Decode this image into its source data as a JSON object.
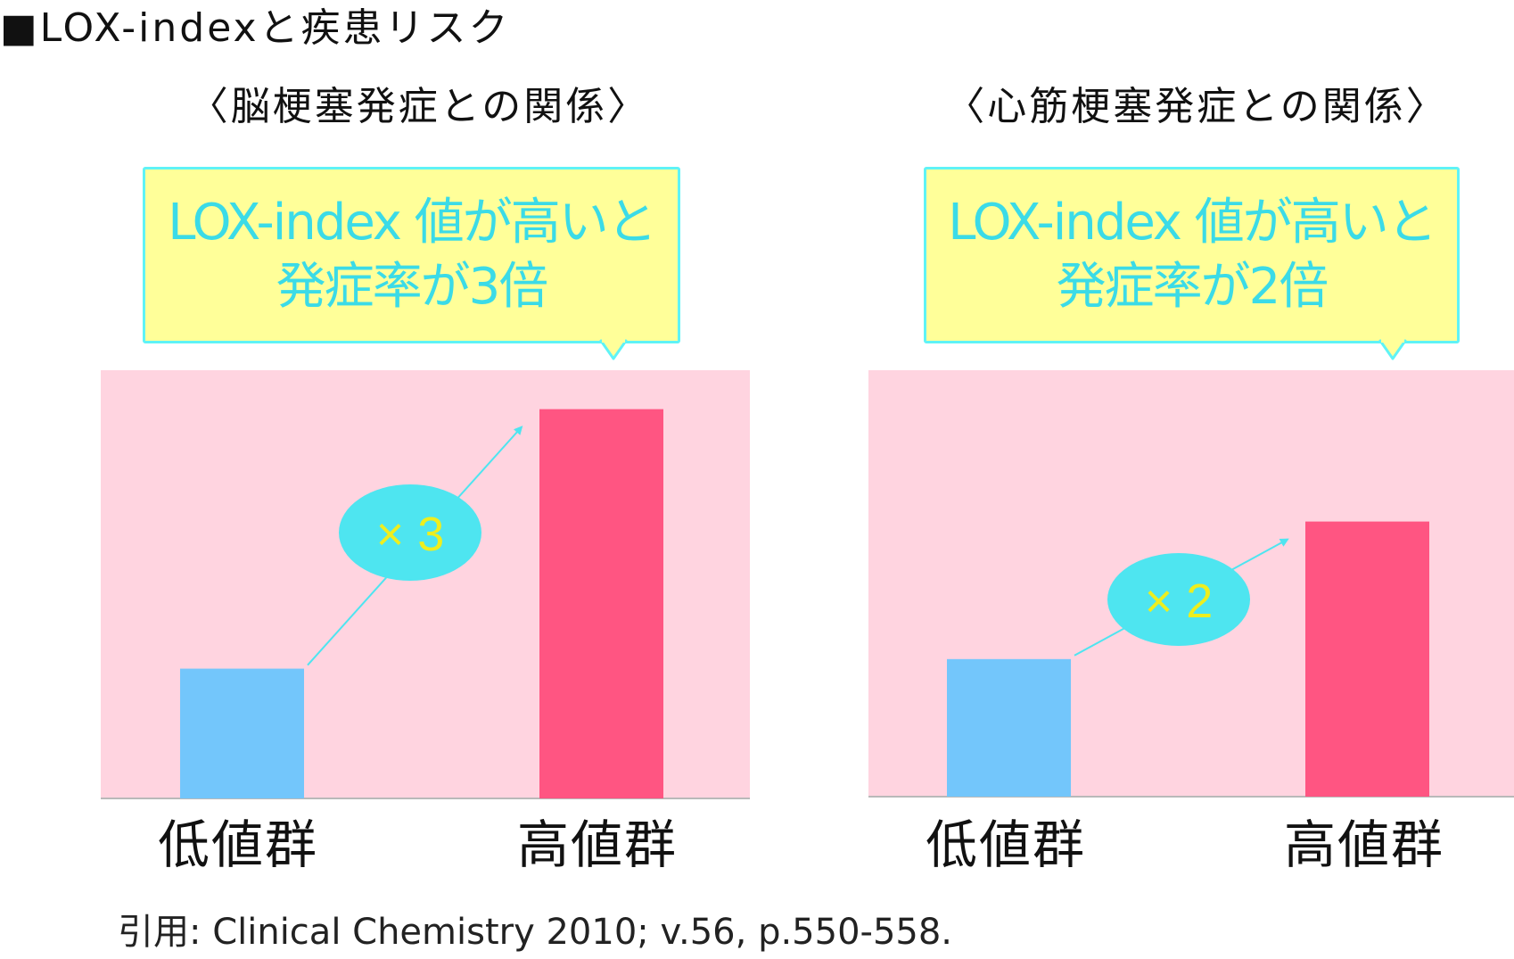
{
  "title": "■LOX-indexと疾患リスク",
  "citation": "引用: Clinical Chemistry 2010; v.56, p.550-558.",
  "colors": {
    "plot_bg": "#ffd4e0",
    "low_bar": "#73c6fb",
    "high_bar": "#ff5582",
    "callout_bg": "#ffff99",
    "accent_cyan": "#4ee5f0",
    "badge_text": "#eeee1e"
  },
  "chart_data": [
    {
      "type": "bar",
      "title": "〈脳梗塞発症との関係〉",
      "categories": [
        "低値群",
        "高値群"
      ],
      "values": [
        1,
        3
      ],
      "ylim": [
        0,
        3.3
      ],
      "grid": false,
      "annotations": {
        "callout_lines": [
          "LOX-index 値が高いと",
          "発症率が3倍"
        ],
        "ratio_badge": "× 3"
      }
    },
    {
      "type": "bar",
      "title": "〈心筋梗塞発症との関係〉",
      "categories": [
        "低値群",
        "高値群"
      ],
      "values": [
        1,
        2
      ],
      "ylim": [
        0,
        3.1
      ],
      "grid": false,
      "annotations": {
        "callout_lines": [
          "LOX-index 値が高いと",
          "発症率が2倍"
        ],
        "ratio_badge": "× 2"
      }
    }
  ]
}
